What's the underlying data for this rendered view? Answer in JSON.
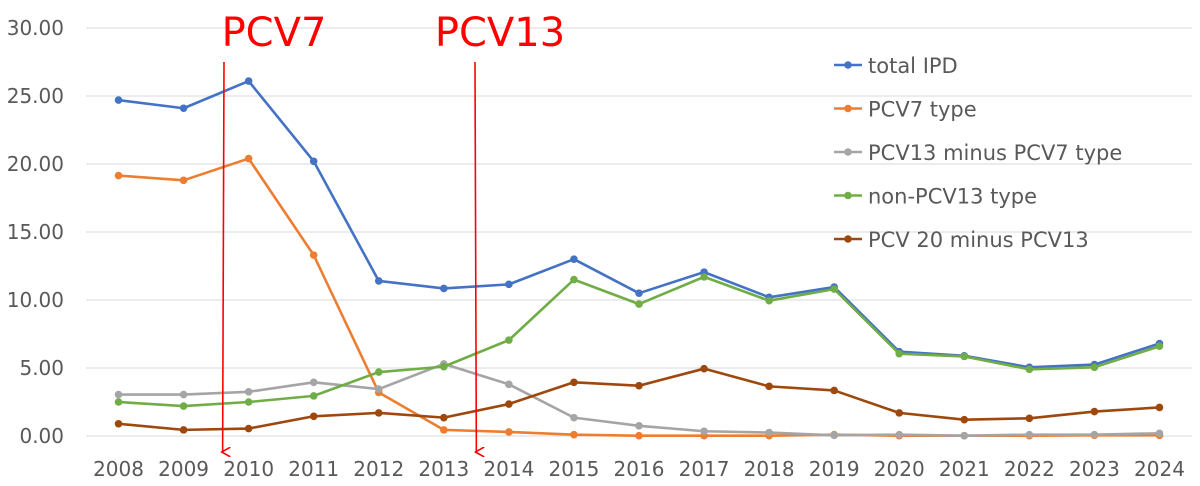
{
  "chart_data": {
    "type": "line",
    "x": [
      "2008",
      "2009",
      "2010",
      "2011",
      "2012",
      "2013",
      "2014",
      "2015",
      "2016",
      "2017",
      "2018",
      "2019",
      "2020",
      "2021",
      "2022",
      "2023",
      "2024"
    ],
    "y_ticks": [
      "0.00",
      "5.00",
      "10.00",
      "15.00",
      "20.00",
      "25.00",
      "30.00"
    ],
    "ylim": [
      0,
      30
    ],
    "grid": true,
    "legend_position": "top-right",
    "series": [
      {
        "name": "total IPD",
        "color": "#4472C4",
        "values": [
          24.7,
          24.1,
          26.1,
          20.2,
          11.4,
          10.85,
          11.15,
          13.0,
          10.5,
          12.05,
          10.2,
          10.95,
          6.2,
          5.9,
          5.05,
          5.25,
          6.8
        ]
      },
      {
        "name": "PCV7 type",
        "color": "#ED7D31",
        "values": [
          19.15,
          18.8,
          20.4,
          13.3,
          3.2,
          0.45,
          0.3,
          0.1,
          0.02,
          0.02,
          0.02,
          0.1,
          0.02,
          0.02,
          0.02,
          0.05,
          0.05
        ]
      },
      {
        "name": "PCV13 minus PCV7 type",
        "color": "#A5A5A5",
        "values": [
          3.05,
          3.05,
          3.25,
          3.95,
          3.45,
          5.3,
          3.8,
          1.35,
          0.75,
          0.35,
          0.25,
          0.05,
          0.1,
          0.02,
          0.1,
          0.1,
          0.2
        ]
      },
      {
        "name": "non-PCV13 type",
        "color": "#70AD47",
        "values": [
          2.5,
          2.2,
          2.5,
          2.95,
          4.7,
          5.1,
          7.05,
          11.5,
          9.7,
          11.7,
          9.95,
          10.8,
          6.05,
          5.85,
          4.9,
          5.05,
          6.6
        ]
      },
      {
        "name": "PCV 20 minus PCV13",
        "color": "#9E480E",
        "values": [
          0.9,
          0.45,
          0.55,
          1.45,
          1.7,
          1.35,
          2.35,
          3.95,
          3.7,
          4.95,
          3.65,
          3.35,
          1.7,
          1.2,
          1.3,
          1.8,
          2.1
        ]
      }
    ],
    "annotations": [
      {
        "text": "PCV7",
        "arrow_x": 2009.6,
        "color": "#FF0000"
      },
      {
        "text": "PCV13",
        "arrow_x": 2013.5,
        "color": "#FF0000"
      }
    ]
  }
}
